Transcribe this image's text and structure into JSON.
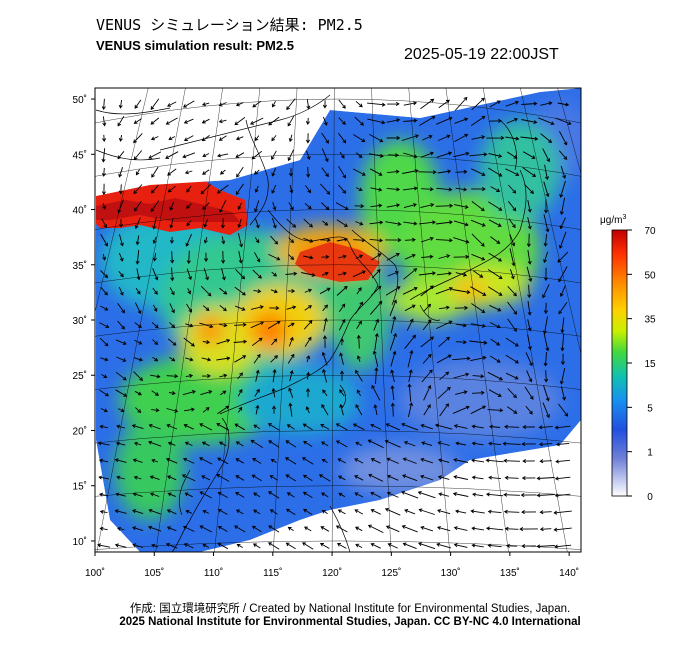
{
  "header": {
    "title_jp": "VENUS シミュレーション結果: PM2.5",
    "title_en": "VENUS simulation result: PM2.5",
    "timestamp": "2025-05-19 22:00JST"
  },
  "map": {
    "lon_ticks": [
      "100˚",
      "105˚",
      "110˚",
      "115˚",
      "120˚",
      "125˚",
      "130˚",
      "135˚",
      "140˚"
    ],
    "lat_ticks": [
      "50˚",
      "45˚",
      "40˚",
      "35˚",
      "30˚",
      "25˚",
      "20˚",
      "15˚",
      "10˚"
    ],
    "lon_values": [
      100,
      105,
      110,
      115,
      120,
      125,
      130,
      135,
      140
    ],
    "lat_values": [
      50,
      45,
      40,
      35,
      30,
      25,
      20,
      15,
      10
    ],
    "lon_range": [
      100,
      141
    ],
    "lat_range": [
      9,
      51
    ]
  },
  "colorbar": {
    "unit_base": "μg/m",
    "unit_exp": "3",
    "labels": [
      "70",
      "50",
      "35",
      "15",
      "5",
      "1",
      "0"
    ],
    "values": [
      70,
      50,
      35,
      15,
      5,
      1,
      0
    ],
    "colors": [
      "#c00000",
      "#ff3000",
      "#ff8c00",
      "#ffd000",
      "#c8f000",
      "#60e040",
      "#20c060",
      "#10c0c0",
      "#1890f0",
      "#2050e0",
      "#6070d8",
      "#b0b8ee",
      "#ffffff"
    ]
  },
  "credits": {
    "line1": "作成: 国立環境研究所 / Created by National Institute for Environmental Studies, Japan.",
    "line2": "2025 National Institute for Environmental Studies, Japan. CC BY-NC 4.0 International"
  }
}
